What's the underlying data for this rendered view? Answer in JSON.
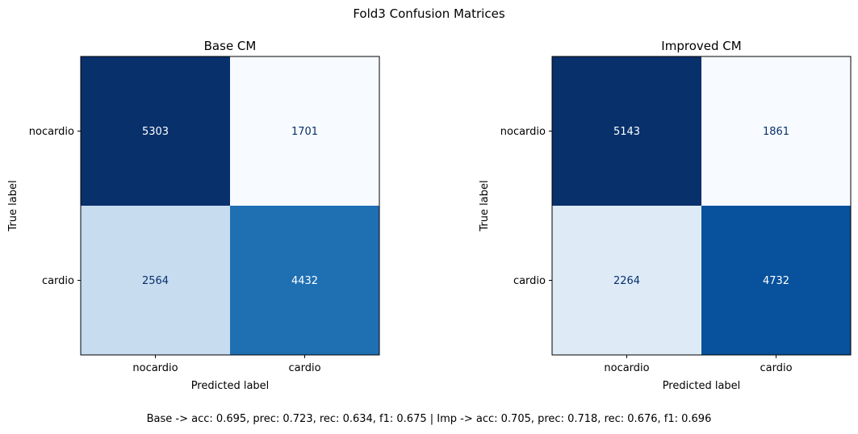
{
  "suptitle": "Fold3 Confusion Matrices",
  "footer": "Base -> acc: 0.695, prec: 0.723, rec: 0.634, f1: 0.675 | Imp -> acc: 0.705, prec: 0.718, rec: 0.676, f1: 0.696",
  "chart_data": [
    {
      "type": "heatmap",
      "title": "Base CM",
      "xlabel": "Predicted label",
      "ylabel": "True label",
      "x_categories": [
        "nocardio",
        "cardio"
      ],
      "y_categories": [
        "nocardio",
        "cardio"
      ],
      "values": [
        [
          5303,
          1701
        ],
        [
          2564,
          4432
        ]
      ],
      "colormap": "Blues",
      "grid": false
    },
    {
      "type": "heatmap",
      "title": "Improved CM",
      "xlabel": "Predicted label",
      "ylabel": "True label",
      "x_categories": [
        "nocardio",
        "cardio"
      ],
      "y_categories": [
        "nocardio",
        "cardio"
      ],
      "values": [
        [
          5143,
          1861
        ],
        [
          2264,
          4732
        ]
      ],
      "colormap": "Blues",
      "grid": false
    }
  ]
}
